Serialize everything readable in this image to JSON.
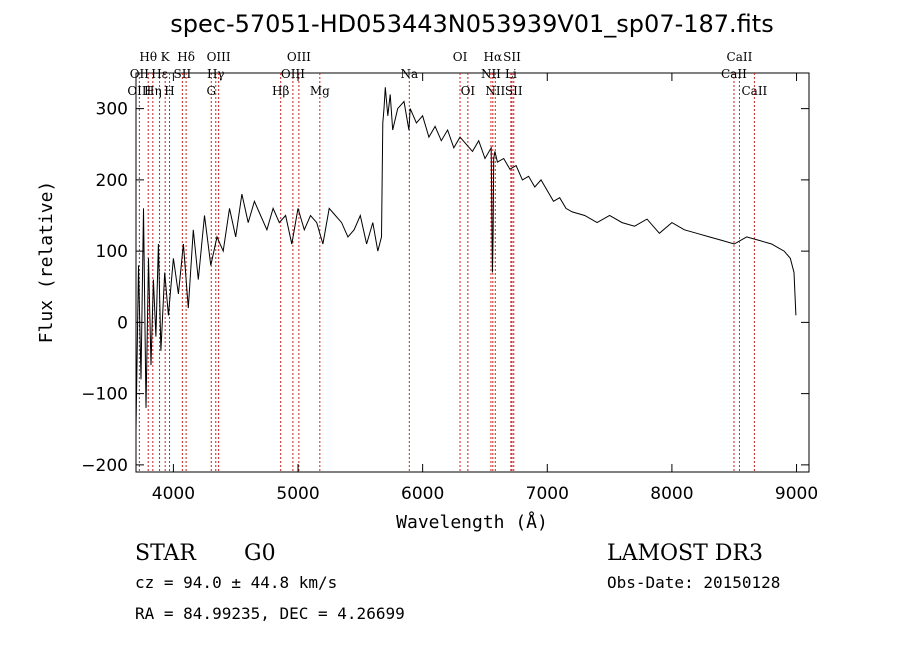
{
  "chart_data": {
    "type": "line",
    "title": "spec-57051-HD053443N053939V01_sp07-187.fits",
    "xlabel": "Wavelength (Å)",
    "ylabel": "Flux (relative)",
    "xlim": [
      3700,
      9100
    ],
    "ylim": [
      -210,
      350
    ],
    "xticks": [
      4000,
      5000,
      6000,
      7000,
      8000,
      9000
    ],
    "yticks": [
      -200,
      -100,
      0,
      100,
      200,
      300
    ],
    "grid": false,
    "series": [
      {
        "x": [
          3700,
          3720,
          3740,
          3760,
          3780,
          3800,
          3820,
          3840,
          3860,
          3880,
          3900,
          3930,
          3960,
          4000,
          4040,
          4080,
          4120,
          4160,
          4200,
          4250,
          4300,
          4350,
          4400,
          4450,
          4500,
          4550,
          4600,
          4650,
          4700,
          4750,
          4800,
          4850,
          4900,
          4950,
          5000,
          5050,
          5100,
          5150,
          5200,
          5250,
          5300,
          5350,
          5400,
          5450,
          5500,
          5550,
          5600,
          5640,
          5670,
          5680,
          5690,
          5700,
          5720,
          5740,
          5760,
          5800,
          5850,
          5890,
          5900,
          5950,
          6000,
          6050,
          6100,
          6150,
          6200,
          6250,
          6300,
          6350,
          6400,
          6450,
          6500,
          6550,
          6560,
          6565,
          6570,
          6580,
          6600,
          6650,
          6700,
          6750,
          6800,
          6850,
          6900,
          6950,
          7000,
          7050,
          7100,
          7150,
          7200,
          7300,
          7400,
          7500,
          7600,
          7700,
          7800,
          7900,
          8000,
          8100,
          8200,
          8300,
          8400,
          8500,
          8600,
          8700,
          8800,
          8850,
          8900,
          8950,
          8980,
          8995
        ],
        "values": [
          -150,
          80,
          -80,
          160,
          -120,
          90,
          -60,
          60,
          -20,
          110,
          -40,
          70,
          10,
          90,
          40,
          110,
          20,
          130,
          60,
          150,
          80,
          120,
          100,
          160,
          120,
          180,
          140,
          170,
          150,
          130,
          160,
          140,
          150,
          110,
          160,
          130,
          150,
          140,
          110,
          160,
          150,
          140,
          120,
          130,
          150,
          110,
          140,
          100,
          120,
          280,
          300,
          330,
          290,
          320,
          270,
          300,
          310,
          270,
          300,
          280,
          290,
          260,
          275,
          255,
          270,
          245,
          260,
          250,
          240,
          255,
          230,
          245,
          70,
          120,
          230,
          240,
          225,
          230,
          215,
          220,
          200,
          205,
          190,
          200,
          185,
          170,
          175,
          160,
          155,
          150,
          140,
          150,
          140,
          135,
          145,
          125,
          140,
          130,
          125,
          120,
          115,
          110,
          120,
          115,
          110,
          105,
          100,
          90,
          70,
          10
        ]
      }
    ],
    "emission_lines": [
      {
        "label": "Hθ",
        "wavelength": 3798,
        "row": 1
      },
      {
        "label": "OII",
        "wavelength": 3727,
        "row": 2
      },
      {
        "label": "OIII",
        "wavelength": 3727,
        "row": 3
      },
      {
        "label": "K",
        "wavelength": 3934,
        "row": 1
      },
      {
        "label": "Hε",
        "wavelength": 3889,
        "row": 2
      },
      {
        "label": "Hη",
        "wavelength": 3835,
        "row": 3
      },
      {
        "label": "Hδ",
        "wavelength": 4102,
        "row": 1
      },
      {
        "label": "SII",
        "wavelength": 4072,
        "row": 2
      },
      {
        "label": "H",
        "wavelength": 3969,
        "row": 3
      },
      {
        "label": "OIII",
        "wavelength": 4363,
        "row": 1
      },
      {
        "label": "Hγ",
        "wavelength": 4340,
        "row": 2
      },
      {
        "label": "G",
        "wavelength": 4304,
        "row": 3
      },
      {
        "label": "OIII",
        "wavelength": 5007,
        "row": 1
      },
      {
        "label": "OIII",
        "wavelength": 4959,
        "row": 2
      },
      {
        "label": "Hβ",
        "wavelength": 4861,
        "row": 3
      },
      {
        "label": "Mg",
        "wavelength": 5175,
        "row": 3
      },
      {
        "label": "Na",
        "wavelength": 5893,
        "row": 2
      },
      {
        "label": "OI",
        "wavelength": 6300,
        "row": 1
      },
      {
        "label": "OI",
        "wavelength": 6363,
        "row": 3
      },
      {
        "label": "Hα",
        "wavelength": 6563,
        "row": 1
      },
      {
        "label": "SII",
        "wavelength": 6717,
        "row": 1
      },
      {
        "label": "NII",
        "wavelength": 6548,
        "row": 2
      },
      {
        "label": "Li",
        "wavelength": 6708,
        "row": 2
      },
      {
        "label": "NII",
        "wavelength": 6583,
        "row": 3
      },
      {
        "label": "SII",
        "wavelength": 6731,
        "row": 3
      },
      {
        "label": "CaII",
        "wavelength": 8542,
        "row": 1
      },
      {
        "label": "CaII",
        "wavelength": 8498,
        "row": 2
      },
      {
        "label": "CaII",
        "wavelength": 8662,
        "row": 3
      }
    ]
  },
  "info": {
    "class_label": "STAR",
    "subclass": "G0",
    "survey": "LAMOST DR3",
    "cz": "cz = 94.0 ± 44.8 km/s",
    "obs_date": "Obs-Date: 20150128",
    "coords": "RA =  84.99235, DEC =   4.26699"
  }
}
